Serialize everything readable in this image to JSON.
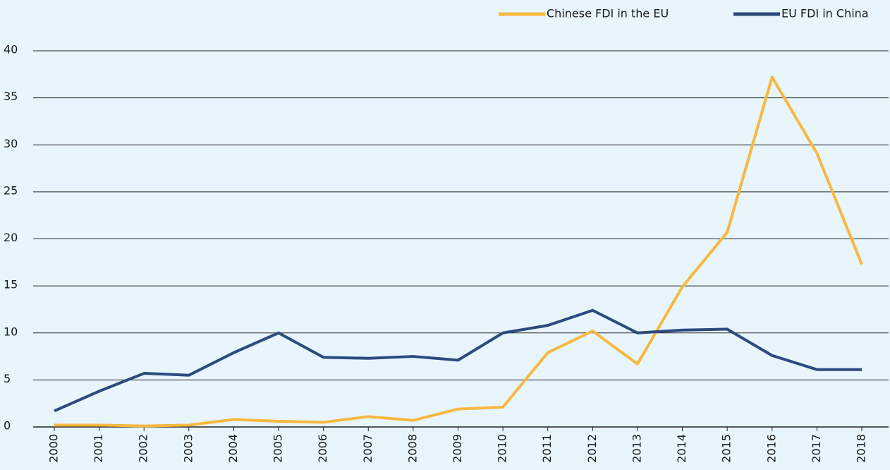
{
  "chart_data": {
    "type": "line",
    "categories": [
      "2000",
      "2001",
      "2002",
      "2003",
      "2004",
      "2005",
      "2006",
      "2007",
      "2008",
      "2009",
      "2010",
      "2011",
      "2012",
      "2013",
      "2014",
      "2015",
      "2016",
      "2017",
      "2018"
    ],
    "series": [
      {
        "name": "Chinese FDI in the EU",
        "color": "#f7b840",
        "values": [
          0.2,
          0.2,
          0.1,
          0.2,
          0.8,
          0.6,
          0.5,
          1.1,
          0.7,
          1.9,
          2.1,
          7.9,
          10.2,
          6.7,
          14.9,
          20.7,
          37.2,
          29.1,
          17.3
        ]
      },
      {
        "name": "EU FDI in China",
        "color": "#2c4a7e",
        "values": [
          1.7,
          3.8,
          5.7,
          5.5,
          7.9,
          10.0,
          7.4,
          7.3,
          7.5,
          7.1,
          10.0,
          10.8,
          12.4,
          10.0,
          10.3,
          10.4,
          7.6,
          6.1,
          6.1
        ]
      }
    ],
    "ylim": [
      0,
      40
    ],
    "yticks": [
      0,
      5,
      10,
      15,
      20,
      25,
      30,
      35,
      40
    ],
    "grid": true,
    "legend": "top-right"
  }
}
